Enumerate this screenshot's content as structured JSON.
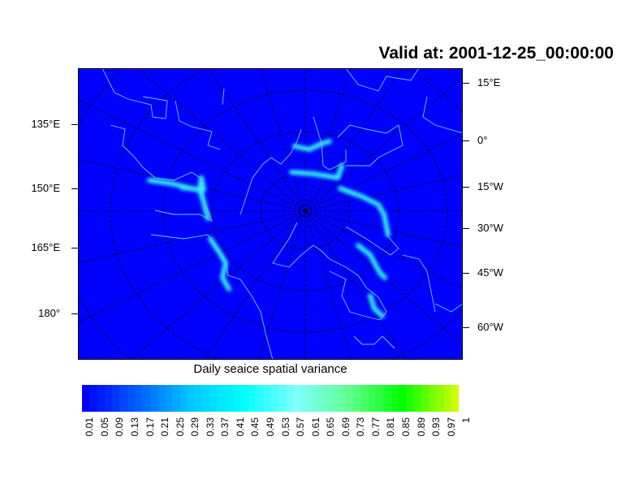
{
  "title": "Valid at: 2001-12-25_00:00:00",
  "left_lon_labels": [
    "135°E",
    "150°E",
    "165°E",
    "180°"
  ],
  "right_lon_labels": [
    "15°E",
    "0°",
    "15°W",
    "30°W",
    "45°W",
    "60°W"
  ],
  "colorbar": {
    "title": "Daily seaice spatial variance",
    "labels": [
      "0.01",
      "0.05",
      "0.09",
      "0.13",
      "0.17",
      "0.21",
      "0.25",
      "0.29",
      "0.33",
      "0.37",
      "0.41",
      "0.45",
      "0.49",
      "0.53",
      "0.57",
      "0.61",
      "0.65",
      "0.69",
      "0.73",
      "0.77",
      "0.81",
      "0.85",
      "0.89",
      "0.93",
      "0.97",
      "1"
    ],
    "color_stops": [
      "#0000ff",
      "#0060ff",
      "#00c8ff",
      "#00ffff",
      "#80ffff",
      "#60ff90",
      "#00ff00",
      "#ccff00"
    ]
  },
  "colors": {
    "background_field": "#0000ff",
    "coastline": "#66ccff",
    "ice_edge": "#40ffff"
  }
}
